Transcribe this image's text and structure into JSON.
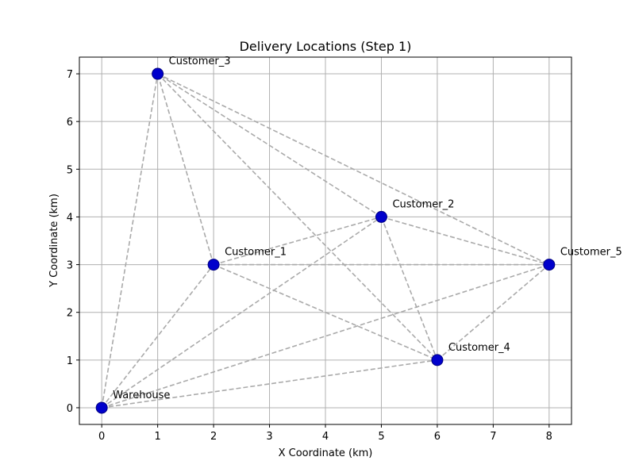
{
  "chart_data": {
    "type": "scatter",
    "title": "Delivery Locations (Step 1)",
    "xlabel": "X Coordinate (km)",
    "ylabel": "Y Coordinate (km)",
    "xlim": [
      -0.4,
      8.4
    ],
    "ylim": [
      -0.35,
      7.35
    ],
    "x_ticks": [
      0,
      1,
      2,
      3,
      4,
      5,
      6,
      7,
      8
    ],
    "y_ticks": [
      0,
      1,
      2,
      3,
      4,
      5,
      6,
      7
    ],
    "grid": true,
    "points": [
      {
        "label": "Warehouse",
        "x": 0,
        "y": 0
      },
      {
        "label": "Customer_1",
        "x": 2,
        "y": 3
      },
      {
        "label": "Customer_2",
        "x": 5,
        "y": 4
      },
      {
        "label": "Customer_3",
        "x": 1,
        "y": 7
      },
      {
        "label": "Customer_4",
        "x": 6,
        "y": 1
      },
      {
        "label": "Customer_5",
        "x": 8,
        "y": 3
      }
    ],
    "connections": "all-pairs",
    "point_color": "#0000cc",
    "point_edge_color": "#000080",
    "line_color": "#aaaaaa",
    "grid_color": "#b0b0b0"
  }
}
